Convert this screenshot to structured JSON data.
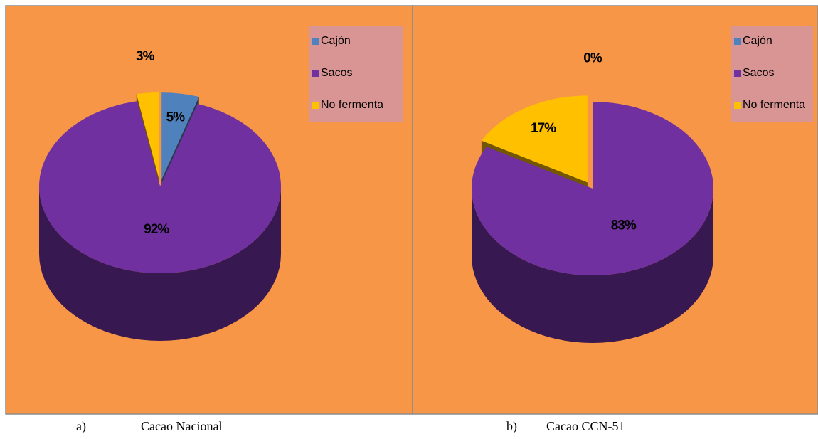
{
  "chart_data": [
    {
      "type": "pie",
      "caption_label": "a)",
      "caption": "Cacao Nacional",
      "categories": [
        "Cajón",
        "Sacos",
        "No fermenta"
      ],
      "values": [
        5,
        92,
        3
      ],
      "value_labels": [
        "5%",
        "92%",
        "3%"
      ],
      "colors": [
        "#4f81bd",
        "#7030a0",
        "#ffc000"
      ],
      "legend": "top-right"
    },
    {
      "type": "pie",
      "caption_label": "b)",
      "caption": "Cacao CCN-51",
      "categories": [
        "Cajón",
        "Sacos",
        "No fermenta"
      ],
      "values": [
        0,
        83,
        17
      ],
      "value_labels": [
        "0%",
        "83%",
        "17%"
      ],
      "colors": [
        "#4f81bd",
        "#7030a0",
        "#ffc000"
      ],
      "legend": "top-right"
    }
  ]
}
